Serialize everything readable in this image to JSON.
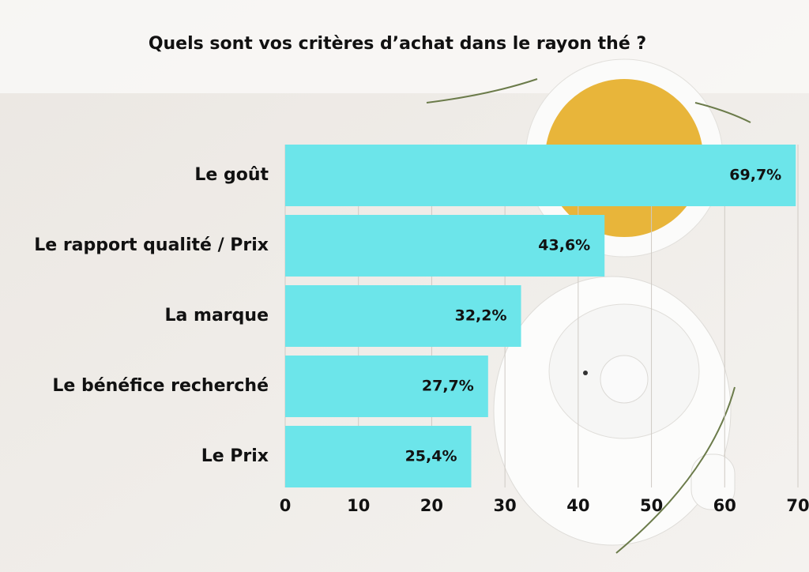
{
  "chart_data": {
    "type": "bar",
    "orientation": "horizontal",
    "title": "Quels sont vos critères d’achat dans le rayon thé ?",
    "categories": [
      "Le goût",
      "Le rapport qualité / Prix",
      "La marque",
      "Le bénéfice recherché",
      "Le Prix"
    ],
    "values": [
      69.7,
      43.6,
      32.2,
      27.7,
      25.4
    ],
    "value_labels": [
      "69,7%",
      "43,6%",
      "32,2%",
      "27,7%",
      "25,4%"
    ],
    "color": "#6ce5ea",
    "xlim": [
      0,
      70
    ],
    "xticks": [
      0,
      10,
      20,
      30,
      40,
      50,
      60,
      70
    ],
    "grid": true
  }
}
